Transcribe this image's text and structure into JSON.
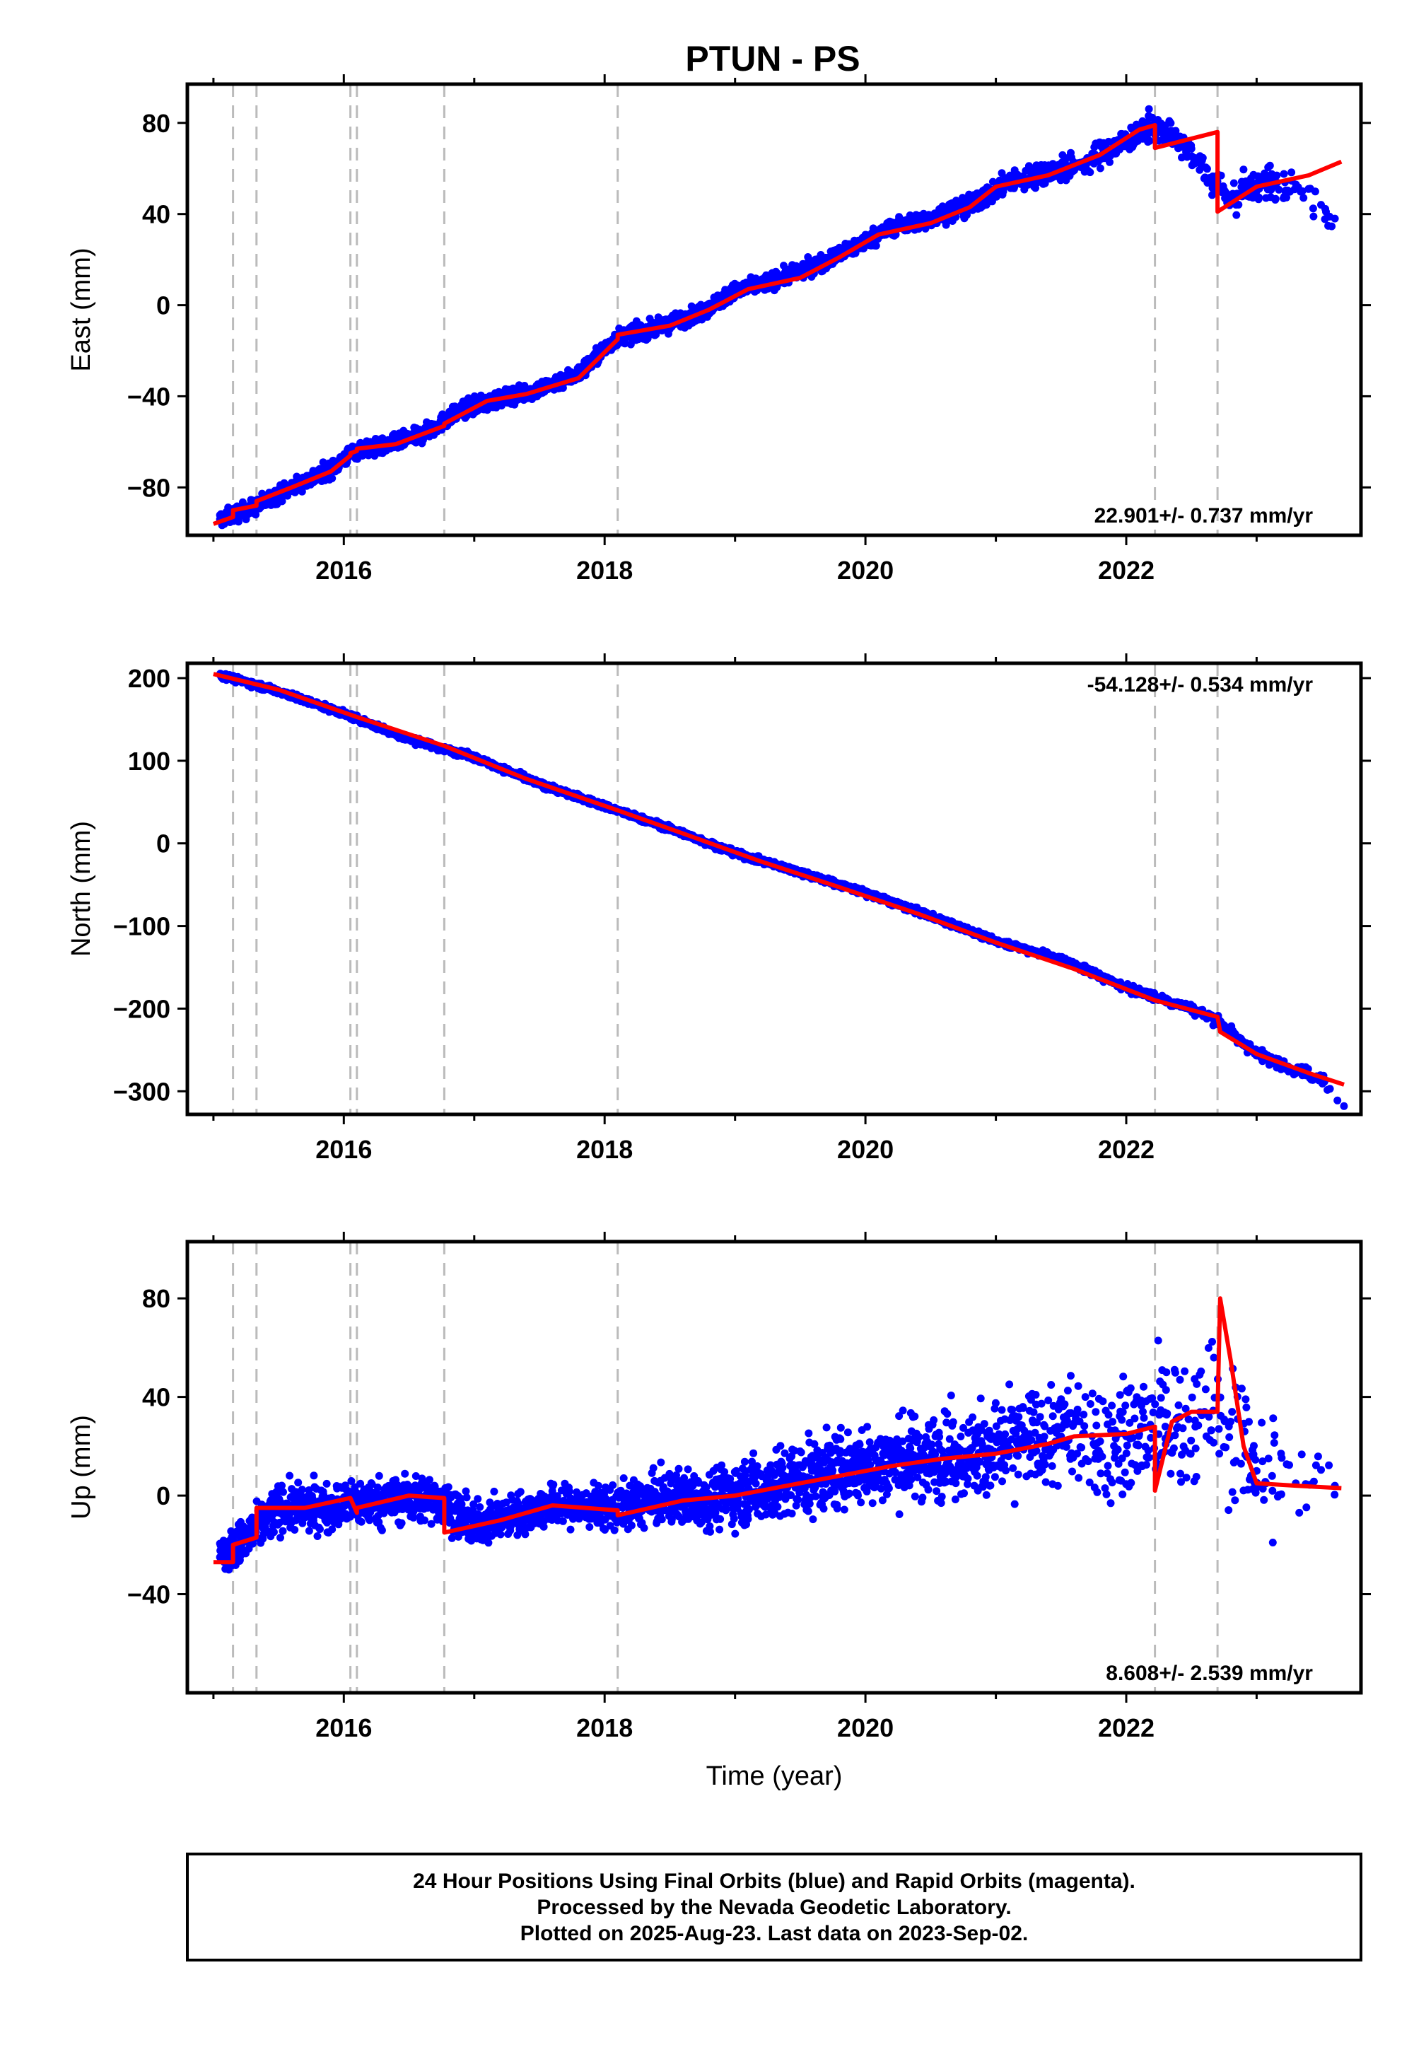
{
  "chart_data": [
    {
      "type": "scatter",
      "title": "PTUN - PS",
      "ylabel": "East (mm)",
      "xlabel": "",
      "xlim": [
        2014.8,
        2023.8
      ],
      "ylim": [
        -101,
        97
      ],
      "xticks": [
        2016,
        2018,
        2020,
        2022
      ],
      "yticks": [
        -80,
        -40,
        0,
        40,
        80
      ],
      "xtick_labels": [
        "2016",
        "2018",
        "2020",
        "2022"
      ],
      "ytick_labels": [
        "−80",
        "−40",
        "0",
        "40",
        "80"
      ],
      "grid": false,
      "annotation": "22.901+/- 0.737 mm/yr",
      "annotation_position": "bottom-right",
      "equipment_change_epochs": [
        2015.15,
        2015.33,
        2016.05,
        2016.1,
        2016.77,
        2018.1,
        2022.22,
        2022.7
      ],
      "series": [
        {
          "kind": "points",
          "color": "#0000ff",
          "x": [
            2015.05,
            2015.3,
            2015.6,
            2015.9,
            2016.08,
            2016.3,
            2016.6,
            2016.9,
            2017.2,
            2017.5,
            2017.8,
            2018.1,
            2018.4,
            2018.7,
            2019.0,
            2019.3,
            2019.6,
            2019.9,
            2020.2,
            2020.5,
            2020.8,
            2021.1,
            2021.4,
            2021.7,
            2022.0,
            2022.2,
            2022.45,
            2022.8,
            2023.05,
            2023.35,
            2023.6
          ],
          "y": [
            -94,
            -89,
            -80,
            -72,
            -64,
            -62,
            -57,
            -46,
            -41,
            -37,
            -30,
            -14,
            -10,
            -4,
            6,
            11,
            17,
            25,
            34,
            38,
            44,
            54,
            58,
            63,
            72,
            79,
            70,
            46,
            54,
            50,
            38
          ],
          "scatter": [
            3,
            3,
            3,
            3,
            3,
            3,
            3,
            3,
            3,
            3,
            3,
            3,
            3,
            3,
            3,
            3,
            3,
            3,
            3,
            3,
            4,
            4,
            4,
            5,
            5,
            5,
            5,
            6,
            6,
            7,
            8
          ],
          "density": [
            60,
            60,
            60,
            60,
            60,
            60,
            60,
            60,
            60,
            60,
            60,
            60,
            60,
            60,
            60,
            60,
            60,
            60,
            60,
            60,
            55,
            45,
            35,
            30,
            40,
            40,
            30,
            30,
            30,
            14,
            4
          ]
        },
        {
          "kind": "line",
          "color": "#ff0000",
          "x": [
            2015.0,
            2015.15,
            2015.15,
            2015.33,
            2015.33,
            2015.6,
            2015.9,
            2016.05,
            2016.05,
            2016.1,
            2016.1,
            2016.4,
            2016.77,
            2016.77,
            2017.1,
            2017.4,
            2017.8,
            2018.1,
            2018.1,
            2018.5,
            2018.8,
            2019.1,
            2019.5,
            2019.8,
            2020.1,
            2020.5,
            2020.8,
            2021.0,
            2021.4,
            2021.8,
            2022.1,
            2022.22,
            2022.22,
            2022.7,
            2022.7,
            2023.0,
            2023.4,
            2023.65
          ],
          "y": [
            -96,
            -93,
            -90,
            -88,
            -86,
            -80,
            -73,
            -66,
            -65,
            -64,
            -63,
            -61,
            -53,
            -52,
            -42,
            -39,
            -32,
            -15,
            -13,
            -9,
            -2,
            7,
            12,
            21,
            31,
            36,
            43,
            52,
            57,
            66,
            77,
            79,
            69,
            76,
            41,
            52,
            57,
            63
          ]
        }
      ]
    },
    {
      "type": "scatter",
      "title": "",
      "ylabel": "North (mm)",
      "xlabel": "",
      "xlim": [
        2014.8,
        2023.8
      ],
      "ylim": [
        -328,
        218
      ],
      "xticks": [
        2016,
        2018,
        2020,
        2022
      ],
      "yticks": [
        -300,
        -200,
        -100,
        0,
        100,
        200
      ],
      "xtick_labels": [
        "2016",
        "2018",
        "2020",
        "2022"
      ],
      "ytick_labels": [
        "−300",
        "−200",
        "−100",
        "0",
        "100",
        "200"
      ],
      "grid": false,
      "annotation": "-54.128+/- 0.534 mm/yr",
      "annotation_position": "top-right",
      "equipment_change_epochs": [
        2015.15,
        2015.33,
        2016.05,
        2016.1,
        2016.77,
        2018.1,
        2022.22,
        2022.7
      ],
      "series": [
        {
          "kind": "points",
          "color": "#0000ff",
          "x": [
            2015.05,
            2015.5,
            2016.0,
            2016.5,
            2017.0,
            2017.5,
            2018.0,
            2018.5,
            2019.0,
            2019.5,
            2020.0,
            2020.5,
            2021.0,
            2021.5,
            2022.0,
            2022.5,
            2022.7,
            2023.0,
            2023.5,
            2023.67
          ],
          "y": [
            204,
            184,
            157,
            126,
            104,
            72,
            45,
            18,
            -12,
            -35,
            -60,
            -88,
            -118,
            -140,
            -175,
            -200,
            -215,
            -255,
            -285,
            -318
          ],
          "scatter": [
            3,
            3,
            3,
            3,
            3,
            3,
            3,
            3,
            3,
            3,
            3,
            3,
            3,
            3,
            4,
            4,
            5,
            6,
            6,
            4
          ],
          "density": [
            60,
            60,
            60,
            60,
            60,
            60,
            60,
            60,
            60,
            60,
            60,
            60,
            60,
            40,
            40,
            30,
            30,
            30,
            12,
            3
          ]
        },
        {
          "kind": "line",
          "color": "#ff0000",
          "x": [
            2015.0,
            2015.5,
            2016.1,
            2016.77,
            2017.4,
            2018.1,
            2018.6,
            2019.2,
            2019.8,
            2020.4,
            2021.0,
            2021.6,
            2022.22,
            2022.7,
            2022.72,
            2023.0,
            2023.4,
            2023.67
          ],
          "y": [
            205,
            186,
            153,
            118,
            78,
            40,
            12,
            -22,
            -53,
            -85,
            -120,
            -152,
            -190,
            -210,
            -228,
            -255,
            -278,
            -292
          ]
        }
      ]
    },
    {
      "type": "scatter",
      "title": "",
      "ylabel": "Up (mm)",
      "xlabel": "Time (year)",
      "xlim": [
        2014.8,
        2023.8
      ],
      "ylim": [
        -80,
        103
      ],
      "xticks": [
        2016,
        2018,
        2020,
        2022
      ],
      "yticks": [
        -40,
        0,
        40,
        80
      ],
      "xtick_labels": [
        "2016",
        "2018",
        "2020",
        "2022"
      ],
      "ytick_labels": [
        "−40",
        "0",
        "40",
        "80"
      ],
      "grid": false,
      "annotation": "8.608+/- 2.539 mm/yr",
      "annotation_position": "bottom-right",
      "equipment_change_epochs": [
        2015.15,
        2015.33,
        2016.05,
        2016.1,
        2016.77,
        2018.1,
        2022.22,
        2022.7
      ],
      "series": [
        {
          "kind": "points",
          "color": "#0000ff",
          "x": [
            2015.05,
            2015.25,
            2015.5,
            2015.8,
            2016.1,
            2016.4,
            2016.7,
            2017.0,
            2017.3,
            2017.6,
            2017.9,
            2018.2,
            2018.5,
            2018.8,
            2019.1,
            2019.4,
            2019.7,
            2020.0,
            2020.3,
            2020.6,
            2020.9,
            2021.2,
            2021.5,
            2021.8,
            2022.0,
            2022.3,
            2022.6,
            2022.8,
            2023.0,
            2023.3,
            2023.6
          ],
          "y": [
            -25,
            -18,
            -5,
            -5,
            -3,
            -2,
            -1,
            -12,
            -8,
            -4,
            -5,
            -4,
            -1,
            -1,
            2,
            5,
            9,
            12,
            15,
            16,
            19,
            21,
            24,
            22,
            24,
            28,
            34,
            30,
            10,
            5,
            4
          ],
          "scatter": [
            6,
            8,
            8,
            8,
            8,
            8,
            8,
            7,
            7,
            7,
            7,
            8,
            9,
            10,
            11,
            13,
            13,
            13,
            14,
            14,
            15,
            16,
            18,
            20,
            20,
            22,
            24,
            25,
            22,
            22,
            18
          ],
          "density": [
            60,
            60,
            60,
            60,
            60,
            60,
            60,
            60,
            60,
            60,
            60,
            60,
            60,
            60,
            60,
            60,
            60,
            60,
            60,
            60,
            55,
            45,
            35,
            25,
            35,
            35,
            25,
            25,
            25,
            10,
            3
          ]
        },
        {
          "kind": "line",
          "color": "#ff0000",
          "x": [
            2015.0,
            2015.15,
            2015.15,
            2015.33,
            2015.33,
            2015.7,
            2016.05,
            2016.1,
            2016.1,
            2016.5,
            2016.77,
            2016.77,
            2017.2,
            2017.6,
            2018.1,
            2018.1,
            2018.6,
            2019.0,
            2019.4,
            2019.8,
            2020.2,
            2020.6,
            2021.0,
            2021.4,
            2021.6,
            2022.0,
            2022.22,
            2022.22,
            2022.35,
            2022.5,
            2022.7,
            2022.72,
            2022.8,
            2022.9,
            2023.0,
            2023.3,
            2023.65
          ],
          "y": [
            -27,
            -27,
            -20,
            -17,
            -5,
            -5,
            -1,
            -7,
            -5,
            0,
            -1,
            -15,
            -10,
            -4,
            -6,
            -8,
            -2,
            0,
            4,
            8,
            12,
            15,
            17,
            21,
            24,
            25,
            28,
            2,
            30,
            34,
            34,
            80,
            55,
            20,
            5,
            4,
            3
          ]
        }
      ]
    }
  ],
  "footer": {
    "line1": "24 Hour Positions Using Final Orbits (blue) and Rapid Orbits (magenta).",
    "line2": "Processed by the Nevada Geodetic Laboratory.",
    "line3": "Plotted on 2025-Aug-23. Last data on 2023-Sep-02."
  },
  "colors": {
    "points": "#0000ff",
    "model": "#ff0000",
    "event_lines": "#bbbbbb",
    "frame": "#000000"
  }
}
